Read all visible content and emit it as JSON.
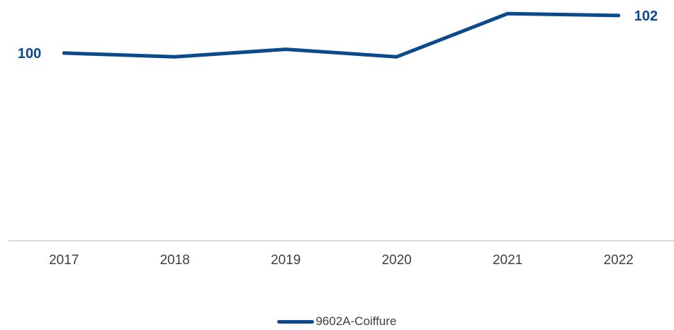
{
  "chart_data": {
    "type": "line",
    "x": [
      "2017",
      "2018",
      "2019",
      "2020",
      "2021",
      "2022"
    ],
    "series": [
      {
        "name": "9602A-Coiffure",
        "values": [
          100,
          99.8,
          100.2,
          99.8,
          102.1,
          102.0
        ]
      }
    ],
    "data_labels": [
      {
        "index": 0,
        "text": "100"
      },
      {
        "index": 5,
        "text": "102"
      }
    ],
    "ylim": [
      90,
      102.6
    ],
    "grid": false,
    "show_y_axis": false,
    "legend_position": "bottom",
    "colors": {
      "series": "#0b4a8b",
      "axis": "#d9d9d9",
      "text": "#404040"
    }
  }
}
